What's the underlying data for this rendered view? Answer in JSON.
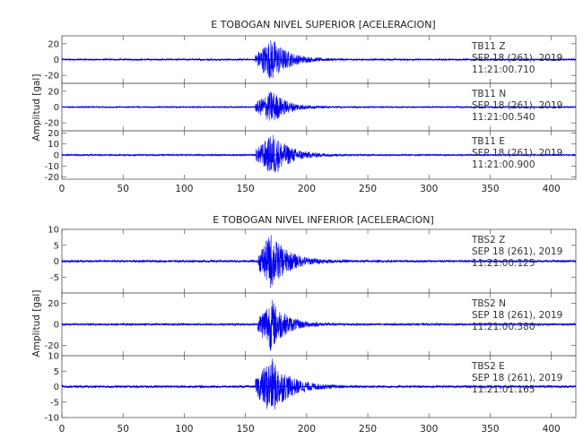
{
  "chart_data": [
    {
      "type": "line",
      "title": "E TOBOGAN NIVEL SUPERIOR [ACELERACION]",
      "ylabel": "Amplitud [gal]",
      "xlabel": "",
      "xlim": [
        0,
        420
      ],
      "x_ticks": [
        "0",
        "50",
        "100",
        "150",
        "200",
        "250",
        "300",
        "350",
        "400"
      ],
      "grid": false,
      "series_color": "#0000ee",
      "panels": [
        {
          "name": "TB11 Z",
          "station": "TB11",
          "component": "Z",
          "date": "SEP 18 (261), 2019",
          "time": "11:21:00.710",
          "ylim": [
            -30,
            30
          ],
          "y_ticks": [
            "20",
            "0",
            "-20"
          ],
          "peak_amplitude": 28,
          "onset_s": 158,
          "peak_s": 172,
          "decay_s": 28
        },
        {
          "name": "TB11 N",
          "station": "TB11",
          "component": "N",
          "date": "SEP 18 (261), 2019",
          "time": "11:21:00.540",
          "ylim": [
            -30,
            30
          ],
          "y_ticks": [
            "20",
            "0",
            "-20"
          ],
          "peak_amplitude": 22,
          "onset_s": 158,
          "peak_s": 172,
          "decay_s": 26
        },
        {
          "name": "TB11 E",
          "station": "TB11",
          "component": "E",
          "date": "SEP 18 (261), 2019",
          "time": "11:21:00.900",
          "ylim": [
            -22,
            22
          ],
          "y_ticks": [
            "20",
            "10",
            "0",
            "-10",
            "-20"
          ],
          "peak_amplitude": 20,
          "onset_s": 158,
          "peak_s": 173,
          "decay_s": 30
        }
      ]
    },
    {
      "type": "line",
      "title": "E TOBOGAN NIVEL INFERIOR [ACELERACION]",
      "ylabel": "Amplitud [gal]",
      "xlabel": "",
      "xlim": [
        0,
        420
      ],
      "x_ticks": [
        "0",
        "50",
        "100",
        "150",
        "200",
        "250",
        "300",
        "350",
        "400"
      ],
      "grid": false,
      "series_color": "#0000ee",
      "panels": [
        {
          "name": "TBS2 Z",
          "station": "TBS2",
          "component": "Z",
          "date": "SEP 18 (261), 2019",
          "time": "11:21:00.125",
          "ylim": [
            -10,
            10
          ],
          "y_ticks": [
            "10",
            "5",
            "0",
            "-5"
          ],
          "peak_amplitude": 9,
          "onset_s": 160,
          "peak_s": 171,
          "decay_s": 30
        },
        {
          "name": "TBS2 N",
          "station": "TBS2",
          "component": "N",
          "date": "SEP 18 (261), 2019",
          "time": "11:21:00.380",
          "ylim": [
            -30,
            30
          ],
          "y_ticks": [
            "20",
            "0",
            "-20"
          ],
          "peak_amplitude": 26,
          "onset_s": 160,
          "peak_s": 171,
          "decay_s": 26
        },
        {
          "name": "TBS2 E",
          "station": "TBS2",
          "component": "E",
          "date": "SEP 18 (261), 2019",
          "time": "11:21:01.165",
          "ylim": [
            -10,
            10
          ],
          "y_ticks": [
            "10",
            "5",
            "0",
            "-5",
            "-10"
          ],
          "peak_amplitude": 9.5,
          "onset_s": 158,
          "peak_s": 171,
          "decay_s": 32
        }
      ]
    }
  ]
}
